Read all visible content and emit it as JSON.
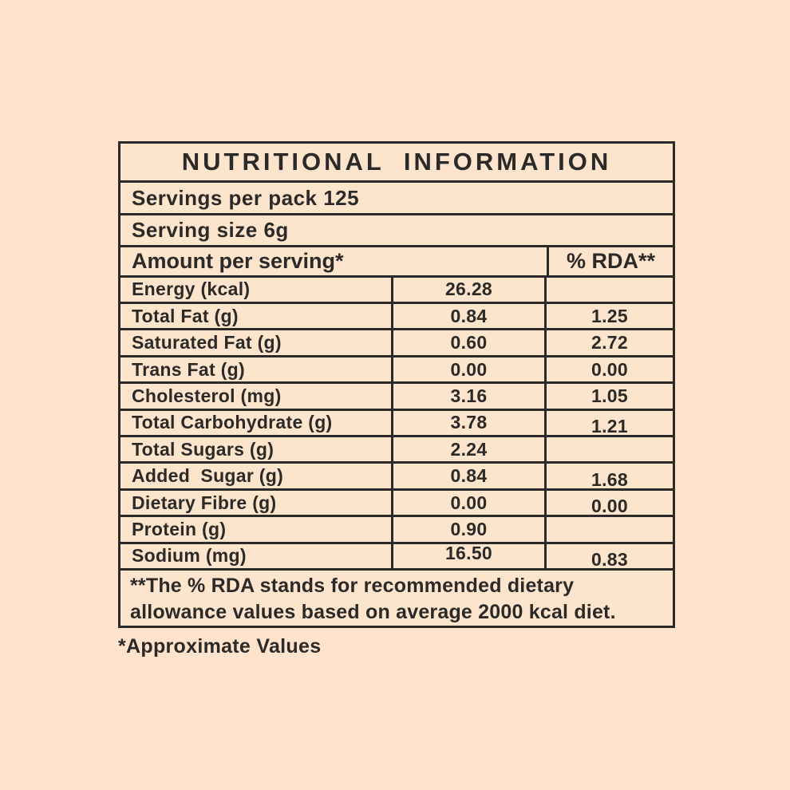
{
  "colors": {
    "page_background": "#ffe3cd",
    "table_background": "#fde4cc",
    "ink": "#2b2a28"
  },
  "table": {
    "title": "NUTRITIONAL INFORMATION",
    "servings_line": "Servings per pack 125",
    "serving_size_line": "Serving size 6g",
    "columns": {
      "amount_header": "Amount per serving*",
      "rda_header": "% RDA**"
    },
    "rows": [
      {
        "label": "Energy (kcal)",
        "value": "26.28",
        "rda": ""
      },
      {
        "label": "Total Fat (g)",
        "value": "0.84",
        "rda": "1.25"
      },
      {
        "label": "Saturated Fat (g)",
        "value": "0.60",
        "rda": "2.72"
      },
      {
        "label": "Trans Fat (g)",
        "value": "0.00",
        "rda": "0.00"
      },
      {
        "label": "Cholesterol (mg)",
        "value": "3.16",
        "rda": "1.05"
      },
      {
        "label": "Total Carbohydrate (g)",
        "value": "3.78",
        "rda": "1.21"
      },
      {
        "label": "Total Sugars (g)",
        "value": "2.24",
        "rda": ""
      },
      {
        "label": "Added  Sugar (g)",
        "value": "0.84",
        "rda": "1.68"
      },
      {
        "label": "Dietary Fibre (g)",
        "value": "0.00",
        "rda": "0.00"
      },
      {
        "label": "Protein (g)",
        "value": "0.90",
        "rda": ""
      },
      {
        "label": "Sodium (mg)",
        "value": "16.50",
        "rda": "0.83"
      }
    ],
    "footnote": "**The % RDA stands for recommended dietary allowance values based on average 2000 kcal diet."
  },
  "approx_note": "*Approximate Values"
}
